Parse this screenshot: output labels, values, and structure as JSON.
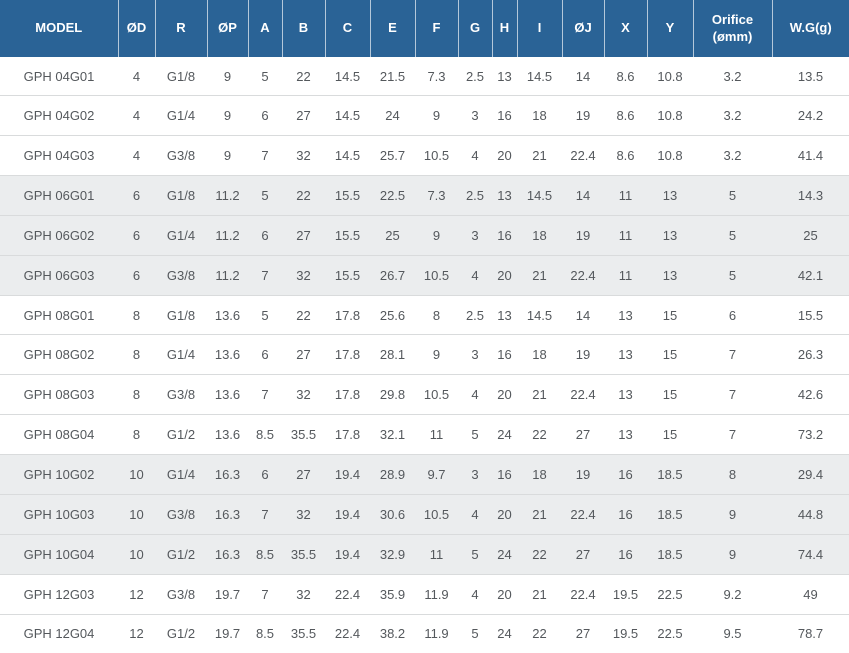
{
  "table": {
    "columns": [
      {
        "key": "model",
        "label": "MODEL"
      },
      {
        "key": "od",
        "label": "ØD"
      },
      {
        "key": "r",
        "label": "R"
      },
      {
        "key": "op",
        "label": "ØP"
      },
      {
        "key": "a",
        "label": "A"
      },
      {
        "key": "b",
        "label": "B"
      },
      {
        "key": "c",
        "label": "C"
      },
      {
        "key": "e",
        "label": "E"
      },
      {
        "key": "f",
        "label": "F"
      },
      {
        "key": "g",
        "label": "G"
      },
      {
        "key": "h",
        "label": "H"
      },
      {
        "key": "i",
        "label": "I"
      },
      {
        "key": "oj",
        "label": "ØJ"
      },
      {
        "key": "x",
        "label": "X"
      },
      {
        "key": "y",
        "label": "Y"
      },
      {
        "key": "orifice",
        "label": "Orifice\n(ømm)"
      },
      {
        "key": "wg",
        "label": "W.G(g)"
      }
    ],
    "rows": [
      [
        "GPH 04G01",
        "4",
        "G1/8",
        "9",
        "5",
        "22",
        "14.5",
        "21.5",
        "7.3",
        "2.5",
        "13",
        "14.5",
        "14",
        "8.6",
        "10.8",
        "3.2",
        "13.5"
      ],
      [
        "GPH 04G02",
        "4",
        "G1/4",
        "9",
        "6",
        "27",
        "14.5",
        "24",
        "9",
        "3",
        "16",
        "18",
        "19",
        "8.6",
        "10.8",
        "3.2",
        "24.2"
      ],
      [
        "GPH 04G03",
        "4",
        "G3/8",
        "9",
        "7",
        "32",
        "14.5",
        "25.7",
        "10.5",
        "4",
        "20",
        "21",
        "22.4",
        "8.6",
        "10.8",
        "3.2",
        "41.4"
      ],
      [
        "GPH 06G01",
        "6",
        "G1/8",
        "11.2",
        "5",
        "22",
        "15.5",
        "22.5",
        "7.3",
        "2.5",
        "13",
        "14.5",
        "14",
        "11",
        "13",
        "5",
        "14.3"
      ],
      [
        "GPH 06G02",
        "6",
        "G1/4",
        "11.2",
        "6",
        "27",
        "15.5",
        "25",
        "9",
        "3",
        "16",
        "18",
        "19",
        "11",
        "13",
        "5",
        "25"
      ],
      [
        "GPH 06G03",
        "6",
        "G3/8",
        "11.2",
        "7",
        "32",
        "15.5",
        "26.7",
        "10.5",
        "4",
        "20",
        "21",
        "22.4",
        "11",
        "13",
        "5",
        "42.1"
      ],
      [
        "GPH 08G01",
        "8",
        "G1/8",
        "13.6",
        "5",
        "22",
        "17.8",
        "25.6",
        "8",
        "2.5",
        "13",
        "14.5",
        "14",
        "13",
        "15",
        "6",
        "15.5"
      ],
      [
        "GPH 08G02",
        "8",
        "G1/4",
        "13.6",
        "6",
        "27",
        "17.8",
        "28.1",
        "9",
        "3",
        "16",
        "18",
        "19",
        "13",
        "15",
        "7",
        "26.3"
      ],
      [
        "GPH 08G03",
        "8",
        "G3/8",
        "13.6",
        "7",
        "32",
        "17.8",
        "29.8",
        "10.5",
        "4",
        "20",
        "21",
        "22.4",
        "13",
        "15",
        "7",
        "42.6"
      ],
      [
        "GPH 08G04",
        "8",
        "G1/2",
        "13.6",
        "8.5",
        "35.5",
        "17.8",
        "32.1",
        "11",
        "5",
        "24",
        "22",
        "27",
        "13",
        "15",
        "7",
        "73.2"
      ],
      [
        "GPH 10G02",
        "10",
        "G1/4",
        "16.3",
        "6",
        "27",
        "19.4",
        "28.9",
        "9.7",
        "3",
        "16",
        "18",
        "19",
        "16",
        "18.5",
        "8",
        "29.4"
      ],
      [
        "GPH 10G03",
        "10",
        "G3/8",
        "16.3",
        "7",
        "32",
        "19.4",
        "30.6",
        "10.5",
        "4",
        "20",
        "21",
        "22.4",
        "16",
        "18.5",
        "9",
        "44.8"
      ],
      [
        "GPH 10G04",
        "10",
        "G1/2",
        "16.3",
        "8.5",
        "35.5",
        "19.4",
        "32.9",
        "11",
        "5",
        "24",
        "22",
        "27",
        "16",
        "18.5",
        "9",
        "74.4"
      ],
      [
        "GPH 12G03",
        "12",
        "G3/8",
        "19.7",
        "7",
        "32",
        "22.4",
        "35.9",
        "11.9",
        "4",
        "20",
        "21",
        "22.4",
        "19.5",
        "22.5",
        "9.2",
        "49"
      ],
      [
        "GPH 12G04",
        "12",
        "G1/2",
        "19.7",
        "8.5",
        "35.5",
        "22.4",
        "38.2",
        "11.9",
        "5",
        "24",
        "22",
        "27",
        "19.5",
        "22.5",
        "9.5",
        "78.7"
      ]
    ]
  },
  "colors": {
    "header_bg": "#2a6396",
    "header_text": "#ffffff",
    "row_bg": "#ffffff",
    "row_alt_bg": "#ebedee",
    "body_text": "#54585c",
    "row_border": "#d9dbdc"
  }
}
